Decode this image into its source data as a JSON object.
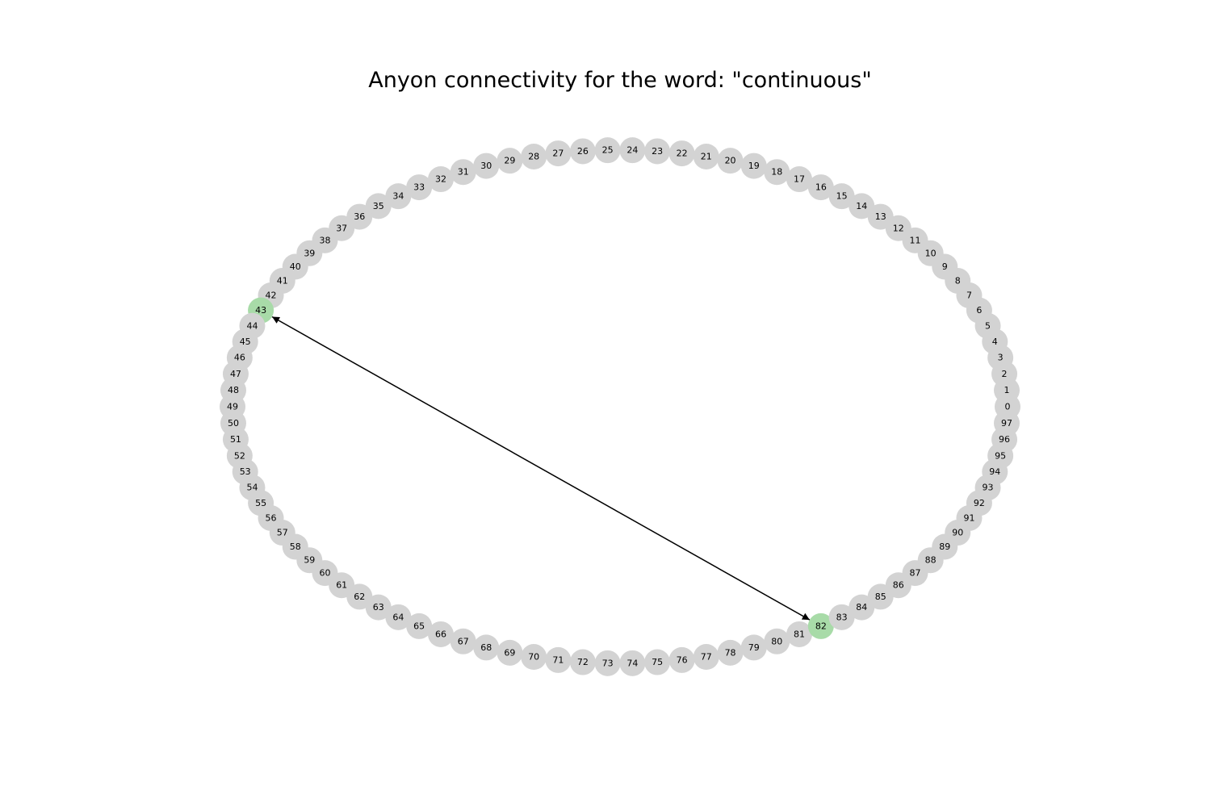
{
  "title": "Anyon connectivity for the word: \"continuous\"",
  "graph": {
    "layout": "circular",
    "node_count": 98,
    "node_labels": [
      "0",
      "1",
      "2",
      "3",
      "4",
      "5",
      "6",
      "7",
      "8",
      "9",
      "10",
      "11",
      "12",
      "13",
      "14",
      "15",
      "16",
      "17",
      "18",
      "19",
      "20",
      "21",
      "22",
      "23",
      "24",
      "25",
      "26",
      "27",
      "28",
      "29",
      "30",
      "31",
      "32",
      "33",
      "34",
      "35",
      "36",
      "37",
      "38",
      "39",
      "40",
      "41",
      "42",
      "43",
      "44",
      "45",
      "46",
      "47",
      "48",
      "49",
      "50",
      "51",
      "52",
      "53",
      "54",
      "55",
      "56",
      "57",
      "58",
      "59",
      "60",
      "61",
      "62",
      "63",
      "64",
      "65",
      "66",
      "67",
      "68",
      "69",
      "70",
      "71",
      "72",
      "73",
      "74",
      "75",
      "76",
      "77",
      "78",
      "79",
      "80",
      "81",
      "82",
      "83",
      "84",
      "85",
      "86",
      "87",
      "88",
      "89",
      "90",
      "91",
      "92",
      "93",
      "94",
      "95",
      "96",
      "97"
    ],
    "highlighted_nodes": [
      "43",
      "82"
    ],
    "edges": [
      {
        "source": "43",
        "target": "82",
        "arrows": "both"
      }
    ],
    "colors": {
      "node_default": "#d3d3d3",
      "node_highlight": "#a8dba8",
      "edge": "#000000",
      "label": "#000000"
    }
  }
}
